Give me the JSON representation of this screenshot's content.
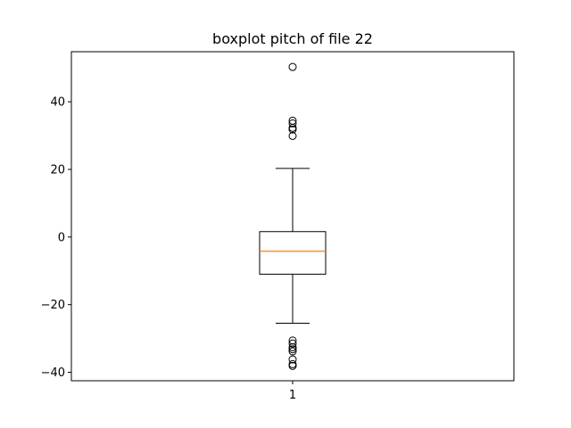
{
  "chart_data": {
    "type": "boxplot",
    "title": "boxplot pitch of file 22",
    "xlabel": "",
    "ylabel": "",
    "ylim": [
      -42.5,
      54.8
    ],
    "yticks": [
      -40,
      -20,
      0,
      20,
      40
    ],
    "ytick_labels": [
      "−40",
      "−20",
      "0",
      "20",
      "40"
    ],
    "categories": [
      "1"
    ],
    "grid": false,
    "boxes": [
      {
        "category": "1",
        "whisker_low": -25.5,
        "q1": -11.0,
        "median": -4.2,
        "q3": 1.6,
        "whisker_high": 20.3,
        "outliers": [
          50.3,
          34.4,
          33.6,
          32.3,
          31.8,
          29.9,
          -30.6,
          -31.5,
          -32.6,
          -33.2,
          -33.8,
          -36.2,
          -37.6,
          -38.1
        ]
      }
    ],
    "colors": {
      "box": "#000000",
      "median": "#ff7f0e",
      "outlier": "#000000"
    }
  }
}
